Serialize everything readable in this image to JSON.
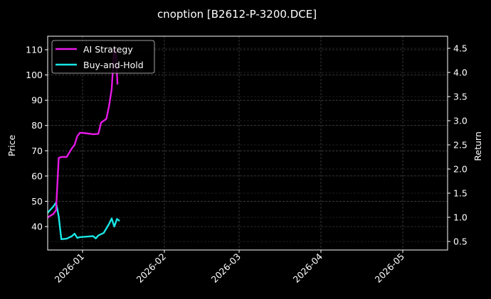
{
  "chart_data": {
    "type": "line",
    "title": "cnoption [B2612-P-3200.DCE]",
    "xlabel": "",
    "ylabel": "Price",
    "y2label": "Return",
    "ylim": [
      31.5,
      115
    ],
    "y2lim": [
      0.33,
      4.75
    ],
    "xlim": [
      "2025-12-18",
      "2026-05-18"
    ],
    "grid": true,
    "legend_position": "upper left",
    "x_ticks": [
      "2026-01",
      "2026-02",
      "2026-03",
      "2026-04",
      "2026-05"
    ],
    "y_ticks": [
      40,
      50,
      60,
      70,
      80,
      90,
      100,
      110
    ],
    "y2_ticks": [
      "0.5",
      "1.0",
      "1.5",
      "2.0",
      "2.5",
      "3.0",
      "3.5",
      "4.0",
      "4.5"
    ],
    "series": [
      {
        "name": "AI Strategy",
        "color": "#e619e6",
        "axis": "right",
        "x": [
          "2025-12-18",
          "2025-12-21",
          "2025-12-22",
          "2025-12-23",
          "2025-12-24",
          "2025-12-26",
          "2025-12-28",
          "2025-12-29",
          "2025-12-30",
          "2025-12-31",
          "2026-01-01",
          "2026-01-05",
          "2026-01-07",
          "2026-01-08",
          "2026-01-09",
          "2026-01-10",
          "2026-01-11",
          "2026-01-12",
          "2026-01-13",
          "2026-01-13.5",
          "2026-01-14",
          "2026-01-14.2"
        ],
        "values": [
          0.97,
          1.07,
          1.15,
          2.23,
          2.25,
          2.25,
          2.43,
          2.5,
          2.68,
          2.75,
          2.75,
          2.72,
          2.73,
          2.96,
          3.0,
          3.04,
          3.3,
          3.65,
          4.5,
          4.4,
          3.95,
          3.75
        ]
      },
      {
        "name": "Buy-and-Hold",
        "color": "#19e6e6",
        "axis": "left",
        "x": [
          "2025-12-18",
          "2025-12-21",
          "2025-12-22",
          "2025-12-23",
          "2025-12-24",
          "2025-12-26",
          "2025-12-28",
          "2025-12-29",
          "2025-12-30",
          "2025-12-31",
          "2026-01-05",
          "2026-01-06",
          "2026-01-07",
          "2026-01-09",
          "2026-01-11",
          "2026-01-12",
          "2026-01-13",
          "2026-01-14",
          "2026-01-15"
        ],
        "values": [
          44.5,
          48.0,
          49.5,
          44.0,
          35.0,
          35.2,
          36.2,
          37.2,
          35.5,
          35.8,
          36.2,
          35.3,
          36.5,
          37.5,
          41.0,
          43.2,
          40.0,
          43.0,
          42.2
        ]
      }
    ],
    "annotations": []
  },
  "ui": {
    "title": "cnoption [B2612-P-3200.DCE]",
    "ylabel_left": "Price",
    "ylabel_right": "Return",
    "legend": [
      {
        "label": "AI Strategy",
        "color": "#e619e6"
      },
      {
        "label": "Buy-and-Hold",
        "color": "#19e6e6"
      }
    ],
    "x_ticks": [
      "2026-01",
      "2026-02",
      "2026-03",
      "2026-04",
      "2026-05"
    ],
    "y_ticks": [
      "40",
      "50",
      "60",
      "70",
      "80",
      "90",
      "100",
      "110"
    ],
    "y2_ticks": [
      "0.5",
      "1.0",
      "1.5",
      "2.0",
      "2.5",
      "3.0",
      "3.5",
      "4.0",
      "4.5"
    ]
  }
}
